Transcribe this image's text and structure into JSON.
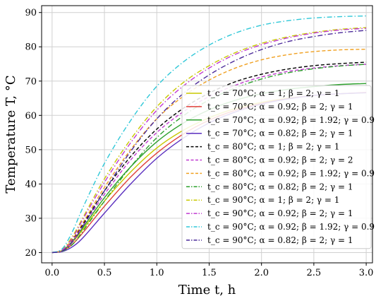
{
  "chart_data": {
    "type": "line",
    "xlabel": "Time t, h",
    "ylabel": "Temperature T, °C",
    "xlim": [
      -0.1,
      3.06
    ],
    "ylim": [
      17,
      92
    ],
    "xticks": [
      0.0,
      0.5,
      1.0,
      1.5,
      2.0,
      2.5,
      3.0
    ],
    "xtick_labels": [
      "0.0",
      "0.5",
      "1.0",
      "1.5",
      "2.0",
      "2.5",
      "3.0"
    ],
    "yticks": [
      20,
      30,
      40,
      50,
      60,
      70,
      80,
      90
    ],
    "ytick_labels": [
      "20",
      "30",
      "40",
      "50",
      "60",
      "70",
      "80",
      "90"
    ],
    "grid": true,
    "legend_position": "right",
    "colors": {
      "yellow": "#c8c800",
      "red": "#e0403a",
      "green": "#2ca02c",
      "purple": "#5b2fbf",
      "black": "#000000",
      "magenta": "#c03ad0",
      "orange": "#f0a020",
      "cyan": "#30c8d8",
      "indigo": "#4b2a9a"
    },
    "x": [
      0.0,
      0.1,
      0.2,
      0.3,
      0.5,
      0.75,
      1.0,
      1.25,
      1.5,
      1.75,
      2.0,
      2.25,
      2.5,
      2.75,
      3.0
    ],
    "series": [
      {
        "name": "t_c = 70°C; α = 1; β = 2; γ = 1",
        "style": "solid",
        "color": "#c8c800",
        "values": [
          20,
          20.6,
          23.2,
          27,
          35,
          43.5,
          50.5,
          55.6,
          59.3,
          62,
          63.8,
          65,
          65.8,
          66.3,
          66.6
        ]
      },
      {
        "name": "t_c = 70°C; α = 0.92; β = 2; γ = 1",
        "style": "solid",
        "color": "#e0403a",
        "values": [
          20,
          20.5,
          22.6,
          26,
          33.5,
          42,
          49,
          54.5,
          58.6,
          61.5,
          63.5,
          64.9,
          65.8,
          66.3,
          66.7
        ]
      },
      {
        "name": "t_c = 70°C; α = 0.92; β = 1.92; γ = 0.9",
        "style": "solid",
        "color": "#2ca02c",
        "values": [
          20,
          20.6,
          23.5,
          27.5,
          36,
          45,
          52.3,
          57.7,
          61.6,
          64.4,
          66.3,
          67.6,
          68.4,
          69,
          69.3
        ]
      },
      {
        "name": "t_c = 70°C; α = 0.82; β = 2; γ = 1",
        "style": "solid",
        "color": "#5b2fbf",
        "values": [
          20,
          20.3,
          21.8,
          24.5,
          31.5,
          40,
          47.5,
          53.3,
          57.8,
          61,
          63.3,
          64.8,
          65.8,
          66.3,
          66.6
        ]
      },
      {
        "name": "t_c = 80°C; α = 1; β = 2; γ = 1",
        "style": "dashed",
        "color": "#000000",
        "values": [
          20,
          20.7,
          24,
          28.5,
          38,
          48,
          56,
          62,
          66.5,
          69.8,
          72,
          73.5,
          74.5,
          75.1,
          75.5
        ]
      },
      {
        "name": "t_c = 80°C; α = 0.92; β = 2; γ = 2",
        "style": "dashed",
        "color": "#c03ad0",
        "values": [
          20,
          20.6,
          23.5,
          28,
          37,
          47,
          55,
          61,
          65.5,
          68.8,
          71.2,
          72.8,
          73.8,
          74.5,
          74.9
        ]
      },
      {
        "name": "t_c = 80°C; α = 0.92; β = 1.92; γ = 0.9",
        "style": "dashed",
        "color": "#f0a020",
        "values": [
          20,
          20.7,
          24.2,
          29,
          39,
          50,
          59,
          65.5,
          70.3,
          73.8,
          76.2,
          77.7,
          78.6,
          79.1,
          79.3
        ]
      },
      {
        "name": "t_c = 80°C; α = 0.82; β = 2; γ = 1",
        "style": "dashdot",
        "color": "#2ca02c",
        "values": [
          20,
          20.4,
          22.5,
          26.5,
          35,
          45,
          53.5,
          59.8,
          64.5,
          68,
          70.6,
          72.4,
          73.6,
          74.4,
          74.9
        ]
      },
      {
        "name": "t_c = 90°C; α = 1; β = 2; γ = 1",
        "style": "dashdot",
        "color": "#c8c800",
        "values": [
          20,
          20.9,
          25,
          30.5,
          41.5,
          53,
          62.5,
          69.5,
          74.5,
          78.3,
          81,
          82.9,
          84.2,
          85.1,
          85.6
        ]
      },
      {
        "name": "t_c = 90°C; α = 0.92; β = 2; γ = 1",
        "style": "dashdot",
        "color": "#c03ad0",
        "values": [
          20,
          20.8,
          24.5,
          30,
          40.5,
          52,
          61.5,
          68.5,
          73.8,
          77.8,
          80.6,
          82.6,
          84,
          84.9,
          85.4
        ]
      },
      {
        "name": "t_c = 90°C; α = 0.92; β = 1.92; γ = 0.9",
        "style": "dashdot",
        "color": "#30c8d8",
        "values": [
          20,
          21.2,
          26.5,
          33.5,
          46,
          58.5,
          68.5,
          75.5,
          80.5,
          84,
          86.3,
          87.6,
          88.4,
          88.8,
          89
        ]
      },
      {
        "name": "t_c = 90°C; α = 0.82; β = 2; γ = 1",
        "style": "dashdot",
        "color": "#4b2a9a",
        "values": [
          20,
          20.5,
          23.3,
          28,
          38,
          49.5,
          59,
          66.3,
          71.8,
          76,
          79.2,
          81.5,
          83,
          84.1,
          84.8
        ]
      }
    ]
  }
}
